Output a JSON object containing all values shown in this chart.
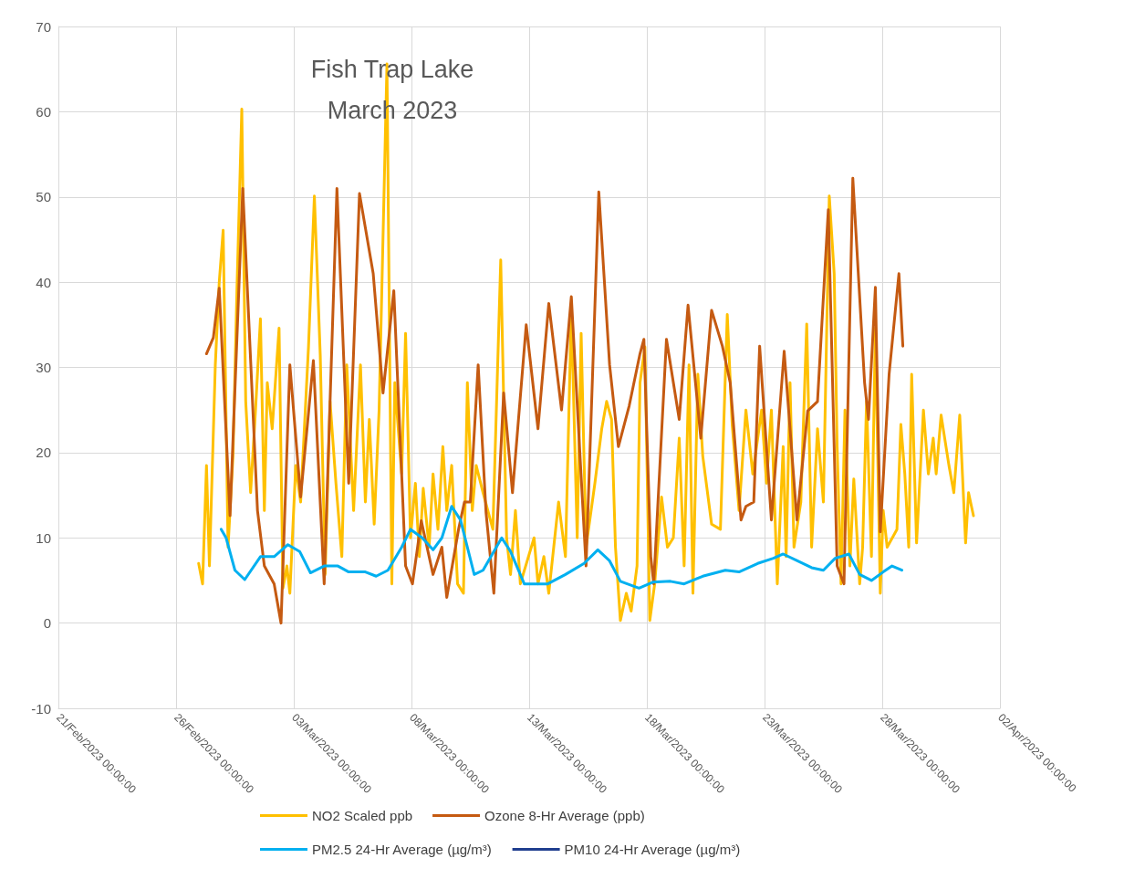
{
  "chart_data": {
    "type": "line",
    "title": "Fish Trap Lake\nMarch 2023",
    "xlim": [
      "2023-02-21",
      "2023-04-02"
    ],
    "xticks": [
      {
        "value": "2023-02-21",
        "label": "21/Feb/2023 00:00:00"
      },
      {
        "value": "2023-02-26",
        "label": "26/Feb/2023 00:00:00"
      },
      {
        "value": "2023-03-03",
        "label": "03/Mar/2023 00:00:00"
      },
      {
        "value": "2023-03-08",
        "label": "08/Mar/2023 00:00:00"
      },
      {
        "value": "2023-03-13",
        "label": "13/Mar/2023 00:00:00"
      },
      {
        "value": "2023-03-18",
        "label": "18/Mar/2023 00:00:00"
      },
      {
        "value": "2023-03-23",
        "label": "23/Mar/2023 00:00:00"
      },
      {
        "value": "2023-03-28",
        "label": "28/Mar/2023 00:00:00"
      },
      {
        "value": "2023-04-02",
        "label": "02/Apr/2023 00:00:00"
      }
    ],
    "ylim": [
      -10,
      70
    ],
    "yticks": [
      -10,
      0,
      10,
      20,
      30,
      40,
      50,
      60,
      70
    ],
    "grid": true,
    "legend": "bottom",
    "marker": "none",
    "line_style": "solid",
    "series": [
      {
        "name": "NO2 Scaled ppb",
        "color": "#ffc000",
        "x": [
          "2023-02-26T23:00",
          "2023-02-27T03:00",
          "2023-02-27T07:00",
          "2023-02-27T10:00",
          "2023-02-27T16:00",
          "2023-02-27T20:00",
          "2023-02-28T00:00",
          "2023-02-28T05:00",
          "2023-02-28T10:00",
          "2023-02-28T14:00",
          "2023-02-28T19:00",
          "2023-02-28T23:00",
          "2023-03-01T04:00",
          "2023-03-01T09:00",
          "2023-03-01T14:00",
          "2023-03-01T18:00",
          "2023-03-01T21:00",
          "2023-03-02T02:00",
          "2023-03-02T09:00",
          "2023-03-02T13:00",
          "2023-03-02T17:00",
          "2023-03-02T20:00",
          "2023-03-03T02:00",
          "2023-03-03T07:00",
          "2023-03-03T15:00",
          "2023-03-03T21:00",
          "2023-03-04T03:00",
          "2023-03-04T08:00",
          "2023-03-04T13:00",
          "2023-03-04T19:00",
          "2023-03-05T01:00",
          "2023-03-05T06:00",
          "2023-03-05T13:00",
          "2023-03-05T20:00",
          "2023-03-06T01:00",
          "2023-03-06T05:00",
          "2023-03-06T10:00",
          "2023-03-06T15:00",
          "2023-03-06T23:00",
          "2023-03-07T04:00",
          "2023-03-07T07:00",
          "2023-03-07T14:00",
          "2023-03-07T18:00",
          "2023-03-07T23:00",
          "2023-03-08T04:00",
          "2023-03-08T08:00",
          "2023-03-08T12:00",
          "2023-03-08T18:00",
          "2023-03-08T22:00",
          "2023-03-09T03:00",
          "2023-03-09T08:00",
          "2023-03-09T12:00",
          "2023-03-09T17:00",
          "2023-03-09T23:00",
          "2023-03-10T05:00",
          "2023-03-10T09:00",
          "2023-03-10T14:00",
          "2023-03-10T18:00",
          "2023-03-11T01:00",
          "2023-03-11T11:00",
          "2023-03-11T19:00",
          "2023-03-12T01:00",
          "2023-03-12T05:00",
          "2023-03-12T10:00",
          "2023-03-12T15:00",
          "2023-03-13T05:00",
          "2023-03-13T09:00",
          "2023-03-13T15:00",
          "2023-03-13T20:00",
          "2023-03-14T06:00",
          "2023-03-14T13:00",
          "2023-03-14T19:00",
          "2023-03-15T01:00",
          "2023-03-15T05:00",
          "2023-03-15T10:00",
          "2023-03-15T19:00",
          "2023-03-16T02:00",
          "2023-03-16T07:00",
          "2023-03-16T12:00",
          "2023-03-16T16:00",
          "2023-03-16T21:00",
          "2023-03-17T03:00",
          "2023-03-17T08:00",
          "2023-03-17T14:00",
          "2023-03-17T17:00",
          "2023-03-17T22:00",
          "2023-03-18T03:00",
          "2023-03-18T08:00",
          "2023-03-18T15:00",
          "2023-03-18T21:00",
          "2023-03-19T03:00",
          "2023-03-19T09:00",
          "2023-03-19T14:00",
          "2023-03-19T19:00",
          "2023-03-19T23:00",
          "2023-03-20T04:00",
          "2023-03-20T09:00",
          "2023-03-20T18:00",
          "2023-03-21T03:00",
          "2023-03-21T10:00",
          "2023-03-21T15:00",
          "2023-03-21T22:00",
          "2023-03-22T05:00",
          "2023-03-22T12:00",
          "2023-03-22T21:00",
          "2023-03-23T02:00",
          "2023-03-23T07:00",
          "2023-03-23T13:00",
          "2023-03-23T19:00",
          "2023-03-23T22:00",
          "2023-03-24T02:00",
          "2023-03-24T06:00",
          "2023-03-24T13:00",
          "2023-03-24T19:00",
          "2023-03-25T00:00",
          "2023-03-25T06:00",
          "2023-03-25T12:00",
          "2023-03-25T18:00",
          "2023-03-25T23:00",
          "2023-03-26T02:00",
          "2023-03-26T06:00",
          "2023-03-26T10:00",
          "2023-03-26T15:00",
          "2023-03-26T19:00",
          "2023-03-27T01:00",
          "2023-03-27T04:00",
          "2023-03-27T08:00",
          "2023-03-27T13:00",
          "2023-03-27T17:00",
          "2023-03-27T22:00",
          "2023-03-28T01:00",
          "2023-03-28T05:00",
          "2023-03-28T15:00",
          "2023-03-28T19:00",
          "2023-03-28T23:00",
          "2023-03-29T03:00",
          "2023-03-29T06:00",
          "2023-03-29T11:00",
          "2023-03-29T18:00",
          "2023-03-29T23:00",
          "2023-03-30T04:00",
          "2023-03-30T07:00",
          "2023-03-30T12:00",
          "2023-03-30T20:00",
          "2023-03-31T01:00",
          "2023-03-31T07:00",
          "2023-03-31T13:00",
          "2023-03-31T16:00",
          "2023-03-31T21:00"
        ],
        "values": [
          7,
          4.6,
          18.5,
          6.7,
          30.3,
          40,
          46.1,
          8.9,
          19.6,
          38.9,
          60.3,
          26,
          15.3,
          25,
          35.7,
          13.2,
          28.2,
          22.8,
          34.6,
          4.1,
          6.7,
          3.5,
          18.5,
          14.2,
          32.4,
          50.1,
          31.4,
          5.7,
          26,
          16.4,
          7.8,
          30.3,
          13.2,
          30.3,
          14.2,
          23.9,
          11.6,
          25,
          65.6,
          4.6,
          28.2,
          17.5,
          34,
          10,
          16.4,
          7.8,
          15.8,
          8.9,
          17.5,
          11,
          20.7,
          13.2,
          18.5,
          4.6,
          3.5,
          28.2,
          13.2,
          18.5,
          15.3,
          11,
          42.6,
          10,
          5.7,
          13.2,
          4.6,
          10,
          4.6,
          7.8,
          3.5,
          14.2,
          7.8,
          36.7,
          10,
          34,
          8.9,
          16.4,
          22.8,
          26,
          23.9,
          8.9,
          0.3,
          3.5,
          1.4,
          6.7,
          28.2,
          32.4,
          0.3,
          4.6,
          14.8,
          8.9,
          10,
          21.7,
          6.7,
          30.3,
          3.5,
          29.2,
          19.6,
          11.6,
          11,
          36.2,
          23.3,
          13.2,
          25,
          17.5,
          25,
          16.4,
          25,
          4.6,
          20.7,
          7.8,
          28.2,
          8.9,
          14.2,
          35.1,
          8.9,
          22.8,
          14.2,
          50.1,
          41,
          20.7,
          4.6,
          25,
          6.7,
          16.9,
          4.6,
          8.9,
          26,
          7.8,
          34.6,
          3.5,
          13.2,
          8.9,
          11,
          23.3,
          17.5,
          8.9,
          29.2,
          9.4,
          25,
          17.5,
          21.7,
          17.5,
          24.4,
          18.5,
          15.3,
          24.4,
          9.4,
          15.3,
          12.6
        ]
      },
      {
        "name": "Ozone 8-Hr Average (ppb)",
        "color": "#c55a11",
        "x": [
          "2023-02-27T07:00",
          "2023-02-27T14:00",
          "2023-02-27T20:00",
          "2023-02-28T07:00",
          "2023-02-28T20:00",
          "2023-03-01T11:00",
          "2023-03-01T18:00",
          "2023-03-02T04:00",
          "2023-03-02T11:00",
          "2023-03-02T20:00",
          "2023-03-03T07:00",
          "2023-03-03T20:00",
          "2023-03-04T07:00",
          "2023-03-04T20:00",
          "2023-03-05T08:00",
          "2023-03-05T19:00",
          "2023-03-06T09:00",
          "2023-03-06T19:00",
          "2023-03-07T06:00",
          "2023-03-07T18:00",
          "2023-03-08T01:00",
          "2023-03-08T10:00",
          "2023-03-08T22:00",
          "2023-03-09T07:00",
          "2023-03-09T12:00",
          "2023-03-10T00:00",
          "2023-03-10T06:00",
          "2023-03-10T12:00",
          "2023-03-10T20:00",
          "2023-03-11T04:00",
          "2023-03-11T12:00",
          "2023-03-11T22:00",
          "2023-03-12T07:00",
          "2023-03-12T21:00",
          "2023-03-13T09:00",
          "2023-03-13T20:00",
          "2023-03-14T09:00",
          "2023-03-14T19:00",
          "2023-03-15T10:00",
          "2023-03-15T23:00",
          "2023-03-16T10:00",
          "2023-03-16T19:00",
          "2023-03-17T06:00",
          "2023-03-17T17:00",
          "2023-03-17T21:00",
          "2023-03-18T04:00",
          "2023-03-18T07:00",
          "2023-03-18T20:00",
          "2023-03-19T09:00",
          "2023-03-19T18:00",
          "2023-03-20T07:00",
          "2023-03-20T18:00",
          "2023-03-21T05:00",
          "2023-03-21T13:00",
          "2023-03-22T00:00",
          "2023-03-22T05:00",
          "2023-03-22T13:00",
          "2023-03-22T19:00",
          "2023-03-23T07:00",
          "2023-03-23T20:00",
          "2023-03-24T09:00",
          "2023-03-24T20:00",
          "2023-03-25T06:00",
          "2023-03-25T17:00",
          "2023-03-26T02:00",
          "2023-03-26T09:00",
          "2023-03-26T18:00",
          "2023-03-27T06:00",
          "2023-03-27T10:00",
          "2023-03-27T17:00",
          "2023-03-27T22:00",
          "2023-03-28T07:00",
          "2023-03-28T17:00",
          "2023-03-28T21:00"
        ],
        "values": [
          31.6,
          33.5,
          39.3,
          12.6,
          51,
          13.2,
          6.7,
          4.6,
          0,
          30.3,
          14.8,
          30.8,
          4.6,
          51,
          16.4,
          50.4,
          41,
          27,
          39,
          6.7,
          4.6,
          12,
          5.7,
          8.9,
          3,
          11,
          14.2,
          14.2,
          30.3,
          13,
          3.5,
          27,
          15.3,
          35,
          22.8,
          37.5,
          25,
          38.3,
          6.7,
          50.6,
          30.3,
          20.7,
          25.5,
          31.6,
          33.3,
          7.8,
          4.6,
          33.3,
          23.9,
          37.3,
          21.7,
          36.7,
          32.5,
          28.2,
          12.1,
          13.7,
          14.2,
          32.5,
          12.1,
          31.9,
          12.1,
          24.9,
          26,
          48.5,
          6.7,
          4.6,
          52.2,
          28.2,
          23.9,
          39.4,
          10.7,
          29.2,
          41,
          32.5
        ]
      },
      {
        "name": "PM2.5 24-Hr Average (µg/m³)",
        "color": "#00b0f0",
        "x": [
          "2023-02-27T22:00",
          "2023-02-28T03:00",
          "2023-02-28T12:00",
          "2023-02-28T22:00",
          "2023-03-01T14:00",
          "2023-03-02T04:00",
          "2023-03-02T18:00",
          "2023-03-03T06:00",
          "2023-03-03T17:00",
          "2023-03-04T07:00",
          "2023-03-04T21:00",
          "2023-03-05T08:00",
          "2023-03-06T01:00",
          "2023-03-06T12:00",
          "2023-03-07T00:00",
          "2023-03-07T14:00",
          "2023-03-07T23:00",
          "2023-03-08T11:00",
          "2023-03-08T22:00",
          "2023-03-09T07:00",
          "2023-03-09T17:00",
          "2023-03-10T02:00",
          "2023-03-10T16:00",
          "2023-03-11T01:00",
          "2023-03-11T20:00",
          "2023-03-12T05:00",
          "2023-03-12T19:00",
          "2023-03-13T19:00",
          "2023-03-14T13:00",
          "2023-03-15T08:00",
          "2023-03-15T22:00",
          "2023-03-16T10:00",
          "2023-03-16T21:00",
          "2023-03-17T16:00",
          "2023-03-18T06:00",
          "2023-03-19T00:00",
          "2023-03-19T14:00",
          "2023-03-20T09:00",
          "2023-03-21T08:00",
          "2023-03-21T22:00",
          "2023-03-22T17:00",
          "2023-03-23T09:00",
          "2023-03-23T19:00",
          "2023-03-24T08:00",
          "2023-03-25T00:00",
          "2023-03-25T12:00",
          "2023-03-26T00:00",
          "2023-03-26T14:00",
          "2023-03-27T01:00",
          "2023-03-27T13:00",
          "2023-03-28T01:00",
          "2023-03-28T10:00",
          "2023-03-28T20:00"
        ],
        "values": [
          11,
          10,
          6.2,
          5.1,
          7.8,
          7.8,
          9.2,
          8.4,
          5.9,
          6.7,
          6.7,
          6,
          6,
          5.5,
          6.2,
          8.9,
          11,
          10,
          8.6,
          10,
          13.7,
          12.1,
          5.7,
          6.2,
          10,
          8.4,
          4.6,
          4.6,
          5.7,
          7,
          8.6,
          7.3,
          4.9,
          4.1,
          4.8,
          4.9,
          4.6,
          5.5,
          6.2,
          6,
          7,
          7.6,
          8.1,
          7.4,
          6.5,
          6.2,
          7.6,
          8.1,
          5.7,
          5,
          6,
          6.7,
          6.2
        ]
      },
      {
        "name": "PM10 24-Hr Average (µg/m³)",
        "color": "#203f8f"
      }
    ]
  }
}
